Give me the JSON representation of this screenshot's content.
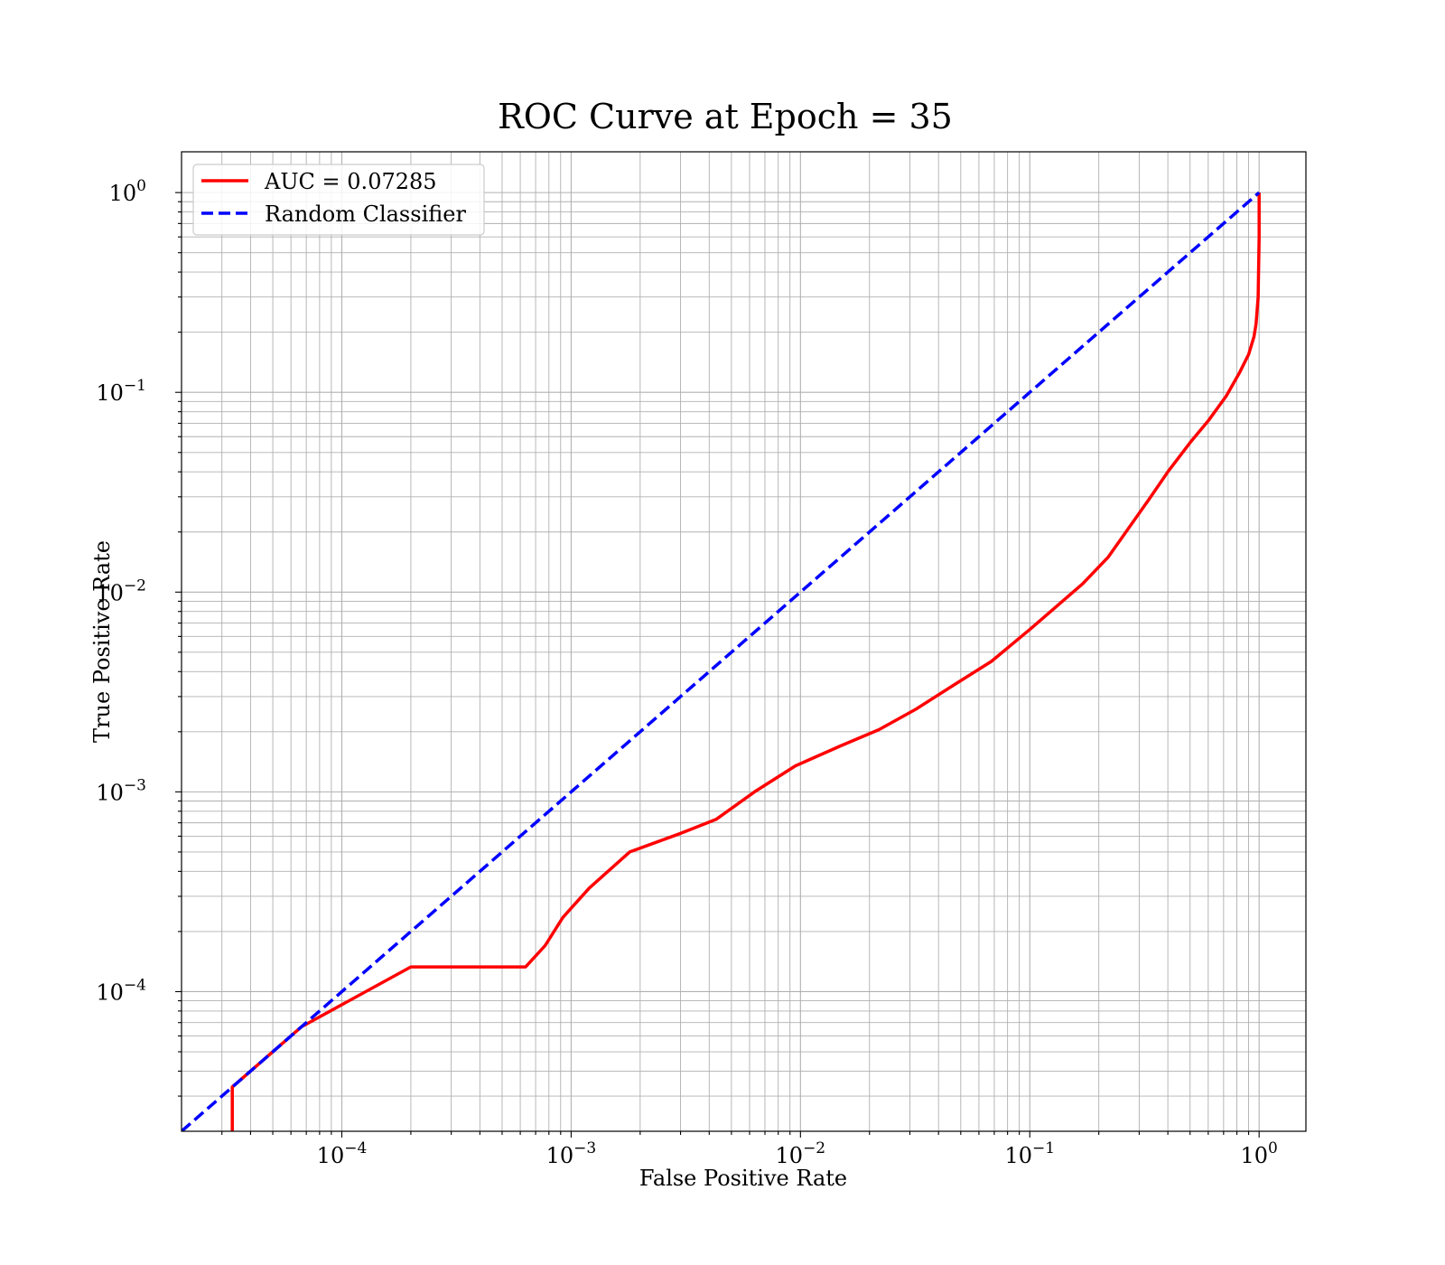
{
  "chart_data": {
    "type": "line",
    "title": "ROC Curve at Epoch = 35",
    "xlabel": "False Positive Rate",
    "ylabel": "True Positive Rate",
    "xscale": "log",
    "yscale": "log",
    "xlim": [
      2e-05,
      1.6
    ],
    "ylim": [
      2e-05,
      1.6
    ],
    "grid": "on (major and minor)",
    "legend_position": "top-left",
    "x_tick_labels": [
      {
        "value": 0.0001,
        "base": "10",
        "exp": "−4"
      },
      {
        "value": 0.001,
        "base": "10",
        "exp": "−3"
      },
      {
        "value": 0.01,
        "base": "10",
        "exp": "−2"
      },
      {
        "value": 0.1,
        "base": "10",
        "exp": "−1"
      },
      {
        "value": 1,
        "base": "10",
        "exp": "0"
      }
    ],
    "y_tick_labels": [
      {
        "value": 0.0001,
        "base": "10",
        "exp": "−4"
      },
      {
        "value": 0.001,
        "base": "10",
        "exp": "−3"
      },
      {
        "value": 0.01,
        "base": "10",
        "exp": "−2"
      },
      {
        "value": 0.1,
        "base": "10",
        "exp": "−1"
      },
      {
        "value": 1,
        "base": "10",
        "exp": "0"
      }
    ],
    "series": [
      {
        "name": "AUC = 0.07285",
        "color": "#ff0000",
        "style": "solid",
        "x": [
          3.33e-05,
          3.33e-05,
          6.67e-05,
          0.0002,
          0.000633,
          0.00077,
          0.00092,
          0.0012,
          0.0018,
          0.003,
          0.0043,
          0.0063,
          0.0095,
          0.015,
          0.022,
          0.032,
          0.048,
          0.068,
          0.1,
          0.17,
          0.22,
          0.33,
          0.4,
          0.5,
          0.6,
          0.72,
          0.82,
          0.9,
          0.95,
          0.97,
          0.99,
          1.0,
          1.0
        ],
        "y": [
          2e-05,
          3.33e-05,
          6.67e-05,
          0.000133,
          0.000133,
          0.00017,
          0.000235,
          0.00033,
          0.0005,
          0.00062,
          0.00073,
          0.001,
          0.00135,
          0.0017,
          0.00205,
          0.0026,
          0.0035,
          0.0045,
          0.0065,
          0.011,
          0.015,
          0.029,
          0.04,
          0.056,
          0.072,
          0.096,
          0.125,
          0.155,
          0.19,
          0.22,
          0.3,
          0.6,
          1.0
        ]
      },
      {
        "name": "Random Classifier",
        "color": "#0000ff",
        "style": "dashed",
        "x": [
          2e-05,
          1.0
        ],
        "y": [
          2e-05,
          1.0
        ]
      }
    ]
  }
}
